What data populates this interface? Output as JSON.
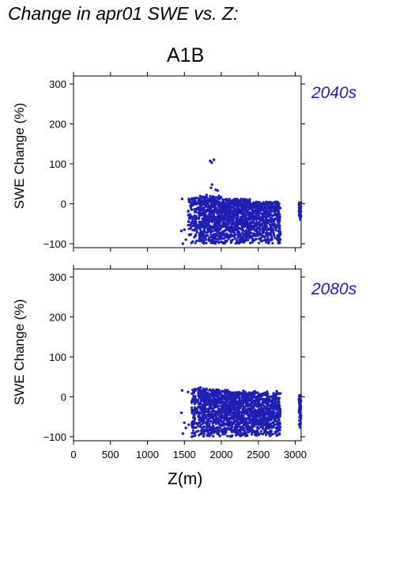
{
  "title": "Change in apr01 SWE vs. Z:",
  "scenario": "A1B",
  "colors": {
    "points": "#1f1fb4",
    "axis": "#000000",
    "period_label": "#1f1fb4"
  },
  "chart_data": [
    {
      "type": "scatter",
      "panel_label": "2040s",
      "ylabel": "SWE Change (%)",
      "xlabel": "",
      "xlim": [
        0,
        3080
      ],
      "ylim": [
        -110,
        320
      ],
      "xticks": [
        0,
        500,
        1000,
        1500,
        2000,
        2500,
        3000
      ],
      "yticks": [
        -100,
        0,
        100,
        200,
        300
      ],
      "ytick_labels": [
        "−100",
        "0",
        "100",
        "200",
        "300"
      ],
      "series": [
        {
          "points": [
            [
              1850,
              107
            ],
            [
              1870,
              103
            ],
            [
              1900,
              110
            ],
            [
              1925,
              35
            ],
            [
              1950,
              33
            ],
            [
              1875,
              48
            ],
            [
              1860,
              40
            ],
            [
              1800,
              22
            ],
            [
              1750,
              15
            ],
            [
              1700,
              13
            ],
            [
              1620,
              13
            ],
            [
              1560,
              12
            ],
            [
              1470,
              12
            ],
            [
              1640,
              5
            ],
            [
              1600,
              -15
            ],
            [
              1640,
              -30
            ],
            [
              1500,
              -65
            ],
            [
              1460,
              -68
            ],
            [
              1520,
              -90
            ],
            [
              1480,
              -100
            ],
            [
              1560,
              -45
            ],
            [
              1620,
              -55
            ]
          ],
          "clusters": [
            {
              "x": [
                1550,
                1700
              ],
              "y": [
                -100,
                15
              ],
              "n": 120
            },
            {
              "x": [
                1700,
                2000
              ],
              "y": [
                -100,
                20
              ],
              "n": 500
            },
            {
              "x": [
                2000,
                2400
              ],
              "y": [
                -100,
                12
              ],
              "n": 700
            },
            {
              "x": [
                2400,
                2800
              ],
              "y": [
                -100,
                5
              ],
              "n": 550
            },
            {
              "x": [
                3050,
                3080
              ],
              "y": [
                -40,
                5
              ],
              "n": 60
            }
          ]
        }
      ]
    },
    {
      "type": "scatter",
      "panel_label": "2080s",
      "ylabel": "SWE Change (%)",
      "xlabel": "Z(m)",
      "xlim": [
        0,
        3080
      ],
      "ylim": [
        -110,
        320
      ],
      "xticks": [
        0,
        500,
        1000,
        1500,
        2000,
        2500,
        3000
      ],
      "xtick_labels": [
        "0",
        "500",
        "1000",
        "1500",
        "2000",
        "2500",
        "3000"
      ],
      "yticks": [
        -100,
        0,
        100,
        200,
        300
      ],
      "ytick_labels": [
        "−100",
        "0",
        "100",
        "200",
        "300"
      ],
      "series": [
        {
          "points": [
            [
              1470,
              16
            ],
            [
              1550,
              12
            ],
            [
              1700,
              22
            ],
            [
              1720,
              23
            ],
            [
              1760,
              20
            ],
            [
              1800,
              20
            ],
            [
              1850,
              18
            ],
            [
              2300,
              15
            ],
            [
              2450,
              14
            ],
            [
              2620,
              13
            ],
            [
              2750,
              14
            ],
            [
              1460,
              -40
            ],
            [
              1500,
              -65
            ],
            [
              1520,
              -78
            ],
            [
              1480,
              -92
            ],
            [
              1560,
              -70
            ],
            [
              1600,
              -100
            ],
            [
              1650,
              -30
            ]
          ],
          "clusters": [
            {
              "x": [
                1600,
                1750
              ],
              "y": [
                -100,
                20
              ],
              "n": 180
            },
            {
              "x": [
                1750,
                2100
              ],
              "y": [
                -100,
                18
              ],
              "n": 550
            },
            {
              "x": [
                2100,
                2500
              ],
              "y": [
                -100,
                12
              ],
              "n": 650
            },
            {
              "x": [
                2500,
                2800
              ],
              "y": [
                -100,
                10
              ],
              "n": 450
            },
            {
              "x": [
                3050,
                3080
              ],
              "y": [
                -80,
                5
              ],
              "n": 60
            }
          ]
        }
      ]
    }
  ]
}
